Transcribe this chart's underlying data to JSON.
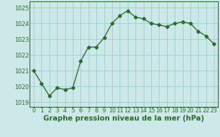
{
  "x": [
    0,
    1,
    2,
    3,
    4,
    5,
    6,
    7,
    8,
    9,
    10,
    11,
    12,
    13,
    14,
    15,
    16,
    17,
    18,
    19,
    20,
    21,
    22,
    23
  ],
  "y": [
    1021.0,
    1020.2,
    1019.4,
    1019.9,
    1019.8,
    1019.9,
    1021.6,
    1022.5,
    1022.5,
    1023.1,
    1024.0,
    1024.5,
    1024.8,
    1024.4,
    1024.3,
    1024.0,
    1023.9,
    1023.8,
    1024.0,
    1024.1,
    1024.0,
    1023.5,
    1023.2,
    1022.7
  ],
  "line_color": "#2d6a2d",
  "marker": "D",
  "marker_size": 2.5,
  "background_color": "#cce8e8",
  "grid_color": "#99cccc",
  "xlabel": "Graphe pression niveau de la mer (hPa)",
  "xlabel_fontsize": 7.5,
  "xlabel_color": "#2d6a2d",
  "xlabel_bold": true,
  "ylim": [
    1018.7,
    1025.4
  ],
  "yticks": [
    1019,
    1020,
    1021,
    1022,
    1023,
    1024,
    1025
  ],
  "xticks": [
    0,
    1,
    2,
    3,
    4,
    5,
    6,
    7,
    8,
    9,
    10,
    11,
    12,
    13,
    14,
    15,
    16,
    17,
    18,
    19,
    20,
    21,
    22,
    23
  ],
  "tick_color": "#2d6a2d",
  "tick_fontsize": 6,
  "spine_color": "#2d6a2d",
  "linewidth": 1.0
}
